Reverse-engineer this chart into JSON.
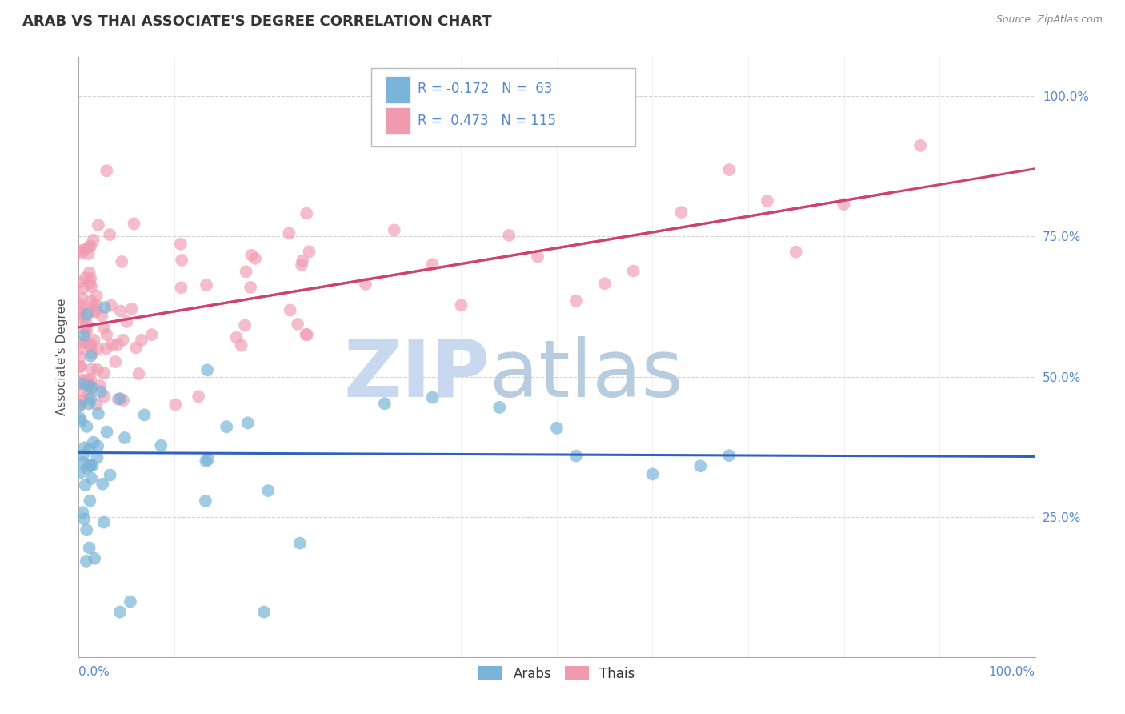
{
  "title": "ARAB VS THAI ASSOCIATE'S DEGREE CORRELATION CHART",
  "source": "Source: ZipAtlas.com",
  "ylabel": "Associate's Degree",
  "right_yticks": [
    "25.0%",
    "50.0%",
    "75.0%",
    "100.0%"
  ],
  "right_ytick_vals": [
    0.25,
    0.5,
    0.75,
    1.0
  ],
  "legend_arab_R": -0.172,
  "legend_arab_N": 63,
  "legend_thai_R": 0.473,
  "legend_thai_N": 115,
  "arab_color": "#7ab4d8",
  "thai_color": "#f09ab0",
  "trend_arab_color": "#3060c0",
  "trend_thai_color": "#d04070",
  "dashed_color": "#bbbbbb",
  "grid_color": "#cccccc",
  "watermark_zip_color": "#c8d8ee",
  "watermark_atlas_color": "#b8cce0",
  "title_color": "#333333",
  "source_color": "#888888",
  "label_color": "#5588cc",
  "ylim_min": 0.0,
  "ylim_max": 1.07
}
